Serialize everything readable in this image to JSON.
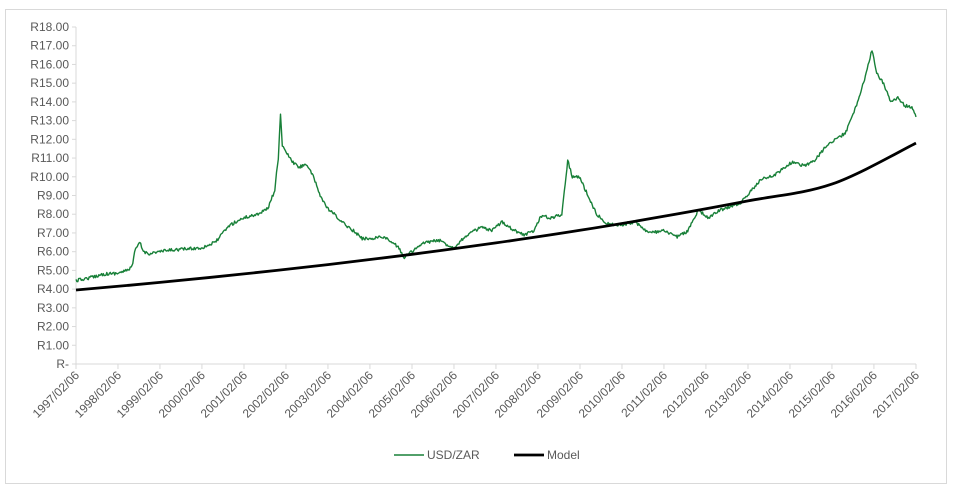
{
  "chart_data": {
    "type": "line",
    "title": "",
    "xlabel": "",
    "ylabel": "",
    "ylim": [
      0,
      18
    ],
    "y_ticks": [
      "R-",
      "R1.00",
      "R2.00",
      "R3.00",
      "R4.00",
      "R5.00",
      "R6.00",
      "R7.00",
      "R8.00",
      "R9.00",
      "R10.00",
      "R11.00",
      "R12.00",
      "R13.00",
      "R14.00",
      "R15.00",
      "R16.00",
      "R17.00",
      "R18.00"
    ],
    "x_ticks": [
      "1997/02/06",
      "1998/02/06",
      "1999/02/06",
      "2000/02/06",
      "2001/02/06",
      "2002/02/06",
      "2003/02/06",
      "2004/02/06",
      "2005/02/06",
      "2006/02/06",
      "2007/02/06",
      "2008/02/06",
      "2009/02/06",
      "2010/02/06",
      "2011/02/06",
      "2012/02/06",
      "2013/02/06",
      "2014/02/06",
      "2015/02/06",
      "2016/02/06",
      "2017/02/06"
    ],
    "grid": false,
    "legend": "bottom",
    "series": [
      {
        "name": "USD/ZAR",
        "color": "#188038",
        "x": [
          "1997/02/06",
          "1997/06/01",
          "1997/10/01",
          "1998/02/01",
          "1998/05/01",
          "1998/06/15",
          "1998/07/01",
          "1998/08/15",
          "1998/09/15",
          "1998/11/01",
          "1999/02/01",
          "1999/06/01",
          "1999/10/01",
          "2000/02/01",
          "2000/06/01",
          "2000/10/01",
          "2001/02/01",
          "2001/06/01",
          "2001/09/01",
          "2001/11/01",
          "2001/12/01",
          "2001/12/20",
          "2002/01/05",
          "2002/02/01",
          "2002/04/01",
          "2002/06/01",
          "2002/08/01",
          "2002/10/01",
          "2002/12/01",
          "2003/02/01",
          "2003/04/01",
          "2003/06/01",
          "2003/09/01",
          "2003/12/01",
          "2004/02/01",
          "2004/06/01",
          "2004/10/01",
          "2004/12/01",
          "2005/02/01",
          "2005/06/01",
          "2005/10/01",
          "2006/02/01",
          "2006/06/01",
          "2006/10/01",
          "2007/01/01",
          "2007/04/01",
          "2007/07/01",
          "2007/10/01",
          "2008/01/01",
          "2008/03/01",
          "2008/06/01",
          "2008/09/01",
          "2008/10/22",
          "2008/12/01",
          "2009/02/01",
          "2009/04/01",
          "2009/07/01",
          "2009/10/01",
          "2010/01/01",
          "2010/06/01",
          "2010/10/01",
          "2011/02/01",
          "2011/06/01",
          "2011/09/01",
          "2011/12/01",
          "2012/03/01",
          "2012/06/01",
          "2012/09/01",
          "2012/12/01",
          "2013/03/01",
          "2013/06/01",
          "2013/09/01",
          "2013/12/01",
          "2014/03/01",
          "2014/06/01",
          "2014/09/01",
          "2014/12/01",
          "2015/03/01",
          "2015/06/01",
          "2015/09/01",
          "2015/12/01",
          "2016/01/20",
          "2016/03/01",
          "2016/05/01",
          "2016/07/01",
          "2016/09/01",
          "2016/11/01",
          "2017/01/01",
          "2017/02/06"
        ],
        "values": [
          4.45,
          4.6,
          4.8,
          4.85,
          5.0,
          5.3,
          6.0,
          6.5,
          6.0,
          5.9,
          6.0,
          6.1,
          6.15,
          6.2,
          6.5,
          7.4,
          7.8,
          8.0,
          8.3,
          9.3,
          11.0,
          13.4,
          11.6,
          11.4,
          10.8,
          10.5,
          10.7,
          10.0,
          9.0,
          8.3,
          8.0,
          7.6,
          7.2,
          6.7,
          6.7,
          6.8,
          6.3,
          5.7,
          6.0,
          6.5,
          6.6,
          6.2,
          6.9,
          7.3,
          7.1,
          7.6,
          7.2,
          6.9,
          7.1,
          7.9,
          7.8,
          8.0,
          10.9,
          10.0,
          10.0,
          9.2,
          8.0,
          7.5,
          7.4,
          7.6,
          7.0,
          7.1,
          6.8,
          7.1,
          8.2,
          7.8,
          8.2,
          8.4,
          8.6,
          9.2,
          9.9,
          10.0,
          10.4,
          10.8,
          10.6,
          10.8,
          11.5,
          12.0,
          12.3,
          13.7,
          15.5,
          16.8,
          15.5,
          15.0,
          14.0,
          14.2,
          13.8,
          13.7,
          13.2
        ]
      },
      {
        "name": "Model",
        "color": "#000000",
        "x": [
          "1997/02/06",
          "1999/02/06",
          "2001/02/06",
          "2003/02/06",
          "2005/02/06",
          "2007/02/06",
          "2009/02/06",
          "2011/02/06",
          "2013/02/06",
          "2015/02/06",
          "2017/02/06"
        ],
        "values": [
          3.95,
          4.36,
          4.81,
          5.31,
          5.86,
          6.47,
          7.14,
          7.89,
          8.71,
          9.61,
          11.8
        ]
      }
    ]
  }
}
